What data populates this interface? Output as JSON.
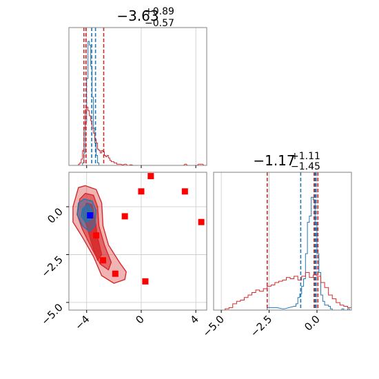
{
  "colors": {
    "blue": "#1f77b4",
    "red": "#d62728",
    "marker_red": "#ff0000",
    "marker_blue": "#0000ff",
    "frame": "#808080",
    "grid": "#c8c8c8"
  },
  "chart_data": [
    {
      "type": "histogram",
      "panel": "marginal-x",
      "title": {
        "main": "−3.63",
        "plus": "+0.89",
        "minus": "−0.57"
      },
      "xlim": [
        -5.3,
        4.8
      ],
      "grid": true,
      "series": [
        {
          "color": "#1f77b4",
          "bins": [
            [
              -4.3,
              0.02
            ],
            [
              -4.2,
              0.1
            ],
            [
              -4.1,
              0.35
            ],
            [
              -4.0,
              0.7
            ],
            [
              -3.9,
              1.0
            ],
            [
              -3.8,
              0.97
            ],
            [
              -3.7,
              0.8
            ],
            [
              -3.6,
              0.55
            ],
            [
              -3.5,
              0.3
            ],
            [
              -3.4,
              0.18
            ],
            [
              -3.3,
              0.08
            ],
            [
              -3.2,
              0.02
            ],
            [
              -3.1,
              0.0
            ]
          ],
          "dashed_lines": [
            -4.05,
            -3.63,
            -3.35
          ]
        },
        {
          "color": "#d62728",
          "bins": [
            [
              -4.6,
              0.01
            ],
            [
              -4.5,
              0.02
            ],
            [
              -4.4,
              0.05
            ],
            [
              -4.3,
              0.12
            ],
            [
              -4.2,
              0.3
            ],
            [
              -4.1,
              0.45
            ],
            [
              -4.0,
              0.47
            ],
            [
              -3.9,
              0.44
            ],
            [
              -3.8,
              0.4
            ],
            [
              -3.7,
              0.36
            ],
            [
              -3.6,
              0.3
            ],
            [
              -3.5,
              0.26
            ],
            [
              -3.4,
              0.21
            ],
            [
              -3.3,
              0.18
            ],
            [
              -3.2,
              0.13
            ],
            [
              -3.1,
              0.12
            ],
            [
              -3.0,
              0.1
            ],
            [
              -2.9,
              0.12
            ],
            [
              -2.8,
              0.11
            ],
            [
              -2.7,
              0.08
            ],
            [
              -2.6,
              0.07
            ],
            [
              -2.5,
              0.08
            ],
            [
              -2.4,
              0.06
            ],
            [
              -2.3,
              0.04
            ],
            [
              -2.2,
              0.03
            ],
            [
              -2.1,
              0.03
            ],
            [
              -2.0,
              0.02
            ],
            [
              -1.9,
              0.02
            ],
            [
              -1.8,
              0.01
            ],
            [
              -1.6,
              0.01
            ],
            [
              -1.4,
              0.005
            ],
            [
              -1.2,
              0.01
            ],
            [
              -1.0,
              0.0
            ],
            [
              -0.8,
              0.005
            ],
            [
              -0.6,
              0.0
            ],
            [
              -0.4,
              0.0
            ],
            [
              -0.2,
              0.0
            ],
            [
              0.0,
              0.0
            ],
            [
              0.2,
              0.0
            ],
            [
              0.4,
              0.0
            ],
            [
              0.6,
              0.0
            ],
            [
              0.8,
              0.0
            ],
            [
              1.0,
              0.0
            ],
            [
              1.2,
              0.0
            ],
            [
              1.4,
              0.0
            ],
            [
              1.6,
              0.0
            ],
            [
              1.8,
              0.0
            ],
            [
              2.0,
              0.0
            ],
            [
              2.2,
              0.0
            ],
            [
              2.4,
              0.0
            ],
            [
              2.6,
              0.0
            ],
            [
              2.8,
              0.0
            ],
            [
              3.0,
              0.0
            ],
            [
              3.2,
              0.01
            ],
            [
              3.4,
              0.0
            ],
            [
              3.6,
              0.0
            ],
            [
              3.8,
              0.0
            ],
            [
              4.0,
              0.0
            ],
            [
              4.2,
              0.01
            ],
            [
              4.4,
              0.01
            ],
            [
              4.6,
              0.0
            ]
          ],
          "dashed_lines": [
            -4.2,
            -4.05,
            -2.75
          ]
        }
      ]
    },
    {
      "type": "scatter",
      "panel": "joint",
      "xlim": [
        -5.3,
        4.8
      ],
      "ylim": [
        -5.4,
        1.8
      ],
      "xticks": [
        -4,
        0,
        4
      ],
      "xtick_labels": [
        "−4",
        "0",
        "4"
      ],
      "yticks": [
        0.0,
        -2.5,
        -5.0
      ],
      "ytick_labels": [
        "0.0",
        "−2.5",
        "−5.0"
      ],
      "grid": true,
      "red_contours": [
        {
          "level": "outer",
          "points": [
            [
              -4.8,
              0.5
            ],
            [
              -4.6,
              1.0
            ],
            [
              -4.1,
              1.1
            ],
            [
              -3.3,
              0.9
            ],
            [
              -2.9,
              0.2
            ],
            [
              -2.8,
              -1.0
            ],
            [
              -2.4,
              -2.0
            ],
            [
              -1.6,
              -2.9
            ],
            [
              -1.1,
              -3.4
            ],
            [
              -1.2,
              -3.8
            ],
            [
              -2.0,
              -4.0
            ],
            [
              -2.9,
              -3.6
            ],
            [
              -3.5,
              -2.6
            ],
            [
              -4.3,
              -1.6
            ],
            [
              -5.0,
              -0.8
            ],
            [
              -5.0,
              0.0
            ]
          ]
        },
        {
          "level": "mid",
          "points": [
            [
              -4.5,
              0.4
            ],
            [
              -4.1,
              0.7
            ],
            [
              -3.5,
              0.6
            ],
            [
              -3.2,
              0.0
            ],
            [
              -3.1,
              -1.0
            ],
            [
              -2.7,
              -2.0
            ],
            [
              -2.2,
              -2.9
            ],
            [
              -2.4,
              -3.3
            ],
            [
              -3.0,
              -3.0
            ],
            [
              -3.6,
              -2.2
            ],
            [
              -4.3,
              -1.2
            ],
            [
              -4.7,
              -0.4
            ]
          ]
        },
        {
          "level": "inner",
          "points": [
            [
              -4.0,
              0.2
            ],
            [
              -3.6,
              0.1
            ],
            [
              -3.4,
              -0.6
            ],
            [
              -3.2,
              -1.6
            ],
            [
              -2.9,
              -2.5
            ],
            [
              -3.2,
              -2.8
            ],
            [
              -3.6,
              -2.0
            ],
            [
              -4.0,
              -1.0
            ],
            [
              -4.3,
              -0.3
            ]
          ]
        }
      ],
      "blue_contours": [
        {
          "level": "outer",
          "points": [
            [
              -4.6,
              0.2
            ],
            [
              -4.2,
              0.4
            ],
            [
              -3.6,
              0.3
            ],
            [
              -3.3,
              -0.2
            ],
            [
              -3.4,
              -1.0
            ],
            [
              -3.8,
              -1.3
            ],
            [
              -4.3,
              -1.0
            ],
            [
              -4.7,
              -0.4
            ]
          ]
        },
        {
          "level": "inner",
          "points": [
            [
              -4.3,
              -0.1
            ],
            [
              -3.9,
              0.1
            ],
            [
              -3.6,
              -0.2
            ],
            [
              -3.7,
              -0.7
            ],
            [
              -4.1,
              -0.8
            ],
            [
              -4.4,
              -0.5
            ]
          ]
        }
      ],
      "red_markers": [
        [
          0.7,
          1.6
        ],
        [
          0.0,
          0.8
        ],
        [
          3.2,
          0.8
        ],
        [
          -1.2,
          -0.5
        ],
        [
          4.4,
          -0.8
        ],
        [
          -3.3,
          -1.5
        ],
        [
          -2.8,
          -2.8
        ],
        [
          -1.9,
          -3.5
        ],
        [
          0.3,
          -3.9
        ]
      ],
      "blue_marker": [
        -3.75,
        -0.45
      ]
    },
    {
      "type": "histogram",
      "panel": "marginal-y",
      "title": {
        "main": "−1.17",
        "plus": "+1.11",
        "minus": "−1.45"
      },
      "xlim": [
        -5.4,
        1.8
      ],
      "xticks": [
        -5.0,
        -2.5,
        0.0
      ],
      "xtick_labels": [
        "−5.0",
        "−2.5",
        "0.0"
      ],
      "grid": true,
      "series": [
        {
          "color": "#1f77b4",
          "bins": [
            [
              -2.6,
              0.02
            ],
            [
              -2.2,
              0.02
            ],
            [
              -1.8,
              0.01
            ],
            [
              -1.2,
              0.03
            ],
            [
              -1.1,
              0.05
            ],
            [
              -1.0,
              0.1
            ],
            [
              -0.9,
              0.13
            ],
            [
              -0.8,
              0.19
            ],
            [
              -0.7,
              0.25
            ],
            [
              -0.6,
              0.45
            ],
            [
              -0.5,
              0.7
            ],
            [
              -0.4,
              0.75
            ],
            [
              -0.3,
              0.9
            ],
            [
              -0.2,
              0.88
            ],
            [
              -0.1,
              0.7
            ],
            [
              0.0,
              0.45
            ],
            [
              0.1,
              0.3
            ],
            [
              0.2,
              0.12
            ],
            [
              0.3,
              0.07
            ],
            [
              0.4,
              0.04
            ],
            [
              0.5,
              0.04
            ],
            [
              0.6,
              0.03
            ],
            [
              0.7,
              0.01
            ],
            [
              0.8,
              0.0
            ],
            [
              0.9,
              0.0
            ],
            [
              1.0,
              0.0
            ],
            [
              1.1,
              0.0
            ],
            [
              1.2,
              0.0
            ],
            [
              1.3,
              0.01
            ],
            [
              1.4,
              0.0
            ],
            [
              1.5,
              0.0
            ],
            [
              1.6,
              0.01
            ],
            [
              1.7,
              0.0
            ]
          ],
          "dashed_lines": [
            -0.85,
            -0.1,
            -0.05
          ]
        },
        {
          "color": "#d62728",
          "bins": [
            [
              -5.0,
              0.0
            ],
            [
              -4.8,
              0.01
            ],
            [
              -4.6,
              0.02
            ],
            [
              -4.4,
              0.05
            ],
            [
              -4.2,
              0.07
            ],
            [
              -4.0,
              0.08
            ],
            [
              -3.8,
              0.1
            ],
            [
              -3.6,
              0.12
            ],
            [
              -3.4,
              0.14
            ],
            [
              -3.2,
              0.16
            ],
            [
              -3.0,
              0.15
            ],
            [
              -2.8,
              0.17
            ],
            [
              -2.6,
              0.19
            ],
            [
              -2.4,
              0.2
            ],
            [
              -2.2,
              0.22
            ],
            [
              -2.0,
              0.23
            ],
            [
              -1.8,
              0.24
            ],
            [
              -1.6,
              0.26
            ],
            [
              -1.4,
              0.25
            ],
            [
              -1.2,
              0.27
            ],
            [
              -1.0,
              0.24
            ],
            [
              -0.8,
              0.27
            ],
            [
              -0.6,
              0.3
            ],
            [
              -0.4,
              0.26
            ],
            [
              -0.2,
              0.28
            ],
            [
              0.0,
              0.27
            ],
            [
              0.2,
              0.22
            ],
            [
              0.4,
              0.18
            ],
            [
              0.6,
              0.12
            ],
            [
              0.8,
              0.09
            ],
            [
              1.0,
              0.06
            ],
            [
              1.2,
              0.04
            ],
            [
              1.4,
              0.03
            ],
            [
              1.6,
              0.02
            ]
          ],
          "dashed_lines": [
            -2.6,
            -0.15,
            0.05
          ]
        }
      ]
    }
  ]
}
